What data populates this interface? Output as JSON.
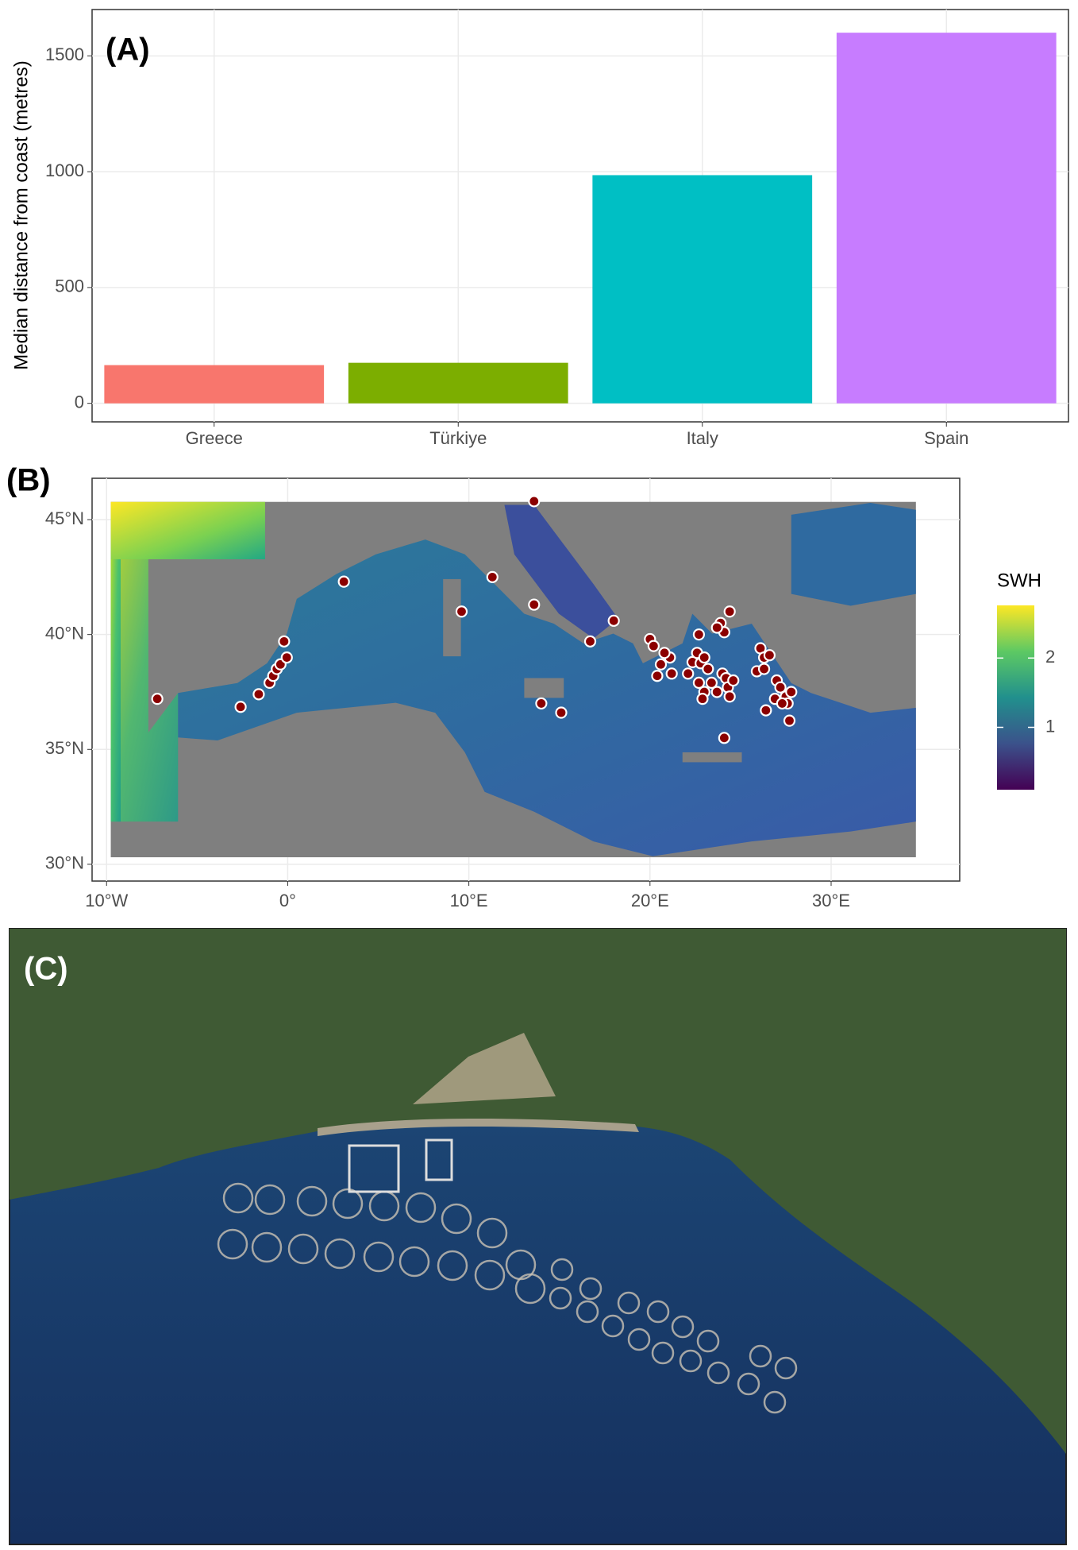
{
  "chart_data": [
    {
      "type": "bar",
      "panel_label": "(A)",
      "ylabel": "Median distance from coast (metres)",
      "categories": [
        "Greece",
        "Türkiye",
        "Italy",
        "Spain"
      ],
      "values": [
        165,
        175,
        985,
        1600
      ],
      "colors": [
        "#F8766D",
        "#7CAE00",
        "#00BFC4",
        "#C77CFF"
      ],
      "ylim": [
        -80,
        1700
      ],
      "yticks": [
        0,
        500,
        1000,
        1500
      ],
      "grid": true
    },
    {
      "type": "scatter",
      "panel_label": "(B)",
      "x": [
        -7.2,
        -2.6,
        -1.6,
        -1.0,
        -0.8,
        -0.6,
        -0.4,
        -0.05,
        -0.2,
        3.1,
        9.6,
        11.3,
        13.6,
        13.6,
        14.0,
        15.1,
        16.7,
        18.0,
        20.0,
        20.2,
        20.4,
        20.6,
        21.1,
        20.8,
        21.2,
        22.1,
        22.35,
        22.6,
        22.8,
        23.0,
        23.2,
        22.7,
        23.0,
        22.9,
        23.4,
        23.7,
        24.0,
        24.2,
        24.3,
        24.6,
        22.7,
        23.9,
        24.1,
        24.4,
        23.7,
        24.4,
        24.1,
        26.1,
        26.3,
        26.6,
        25.9,
        26.3,
        26.4,
        27.0,
        27.2,
        27.5,
        26.9,
        27.6,
        27.8,
        27.7,
        27.3
      ],
      "y": [
        37.2,
        36.85,
        37.4,
        37.9,
        38.2,
        38.5,
        38.7,
        39.0,
        39.7,
        42.3,
        41.0,
        42.5,
        45.8,
        41.3,
        37.0,
        36.6,
        39.7,
        40.6,
        39.8,
        39.5,
        38.2,
        38.7,
        39.0,
        39.2,
        38.3,
        38.3,
        38.8,
        39.2,
        38.75,
        39.0,
        38.5,
        37.9,
        37.5,
        37.2,
        37.9,
        37.5,
        38.3,
        38.1,
        37.7,
        38.0,
        40.0,
        40.5,
        40.1,
        41.0,
        40.3,
        37.3,
        35.5,
        39.4,
        39.0,
        39.1,
        38.4,
        38.5,
        36.7,
        38.0,
        37.7,
        37.3,
        37.2,
        37.0,
        37.5,
        36.25,
        37.0
      ],
      "color": "#8B0000",
      "xlim": [
        -10.8,
        37.1
      ],
      "ylim": [
        29.27,
        46.8
      ],
      "xticks": [
        {
          "value": -10,
          "label": "10°W"
        },
        {
          "value": 0,
          "label": "0°"
        },
        {
          "value": 10,
          "label": "10°E"
        },
        {
          "value": 20,
          "label": "20°E"
        },
        {
          "value": 30,
          "label": "30°E"
        }
      ],
      "yticks": [
        {
          "value": 30,
          "label": "30°N"
        },
        {
          "value": 35,
          "label": "35°N"
        },
        {
          "value": 40,
          "label": "40°N"
        },
        {
          "value": 45,
          "label": "45°N"
        }
      ],
      "grid": true,
      "colorbar": {
        "title": "SWH",
        "lim": [
          0.1,
          2.76
        ],
        "ticks": [
          1,
          2
        ]
      }
    }
  ],
  "photo": {
    "panel_label": "(C)"
  }
}
